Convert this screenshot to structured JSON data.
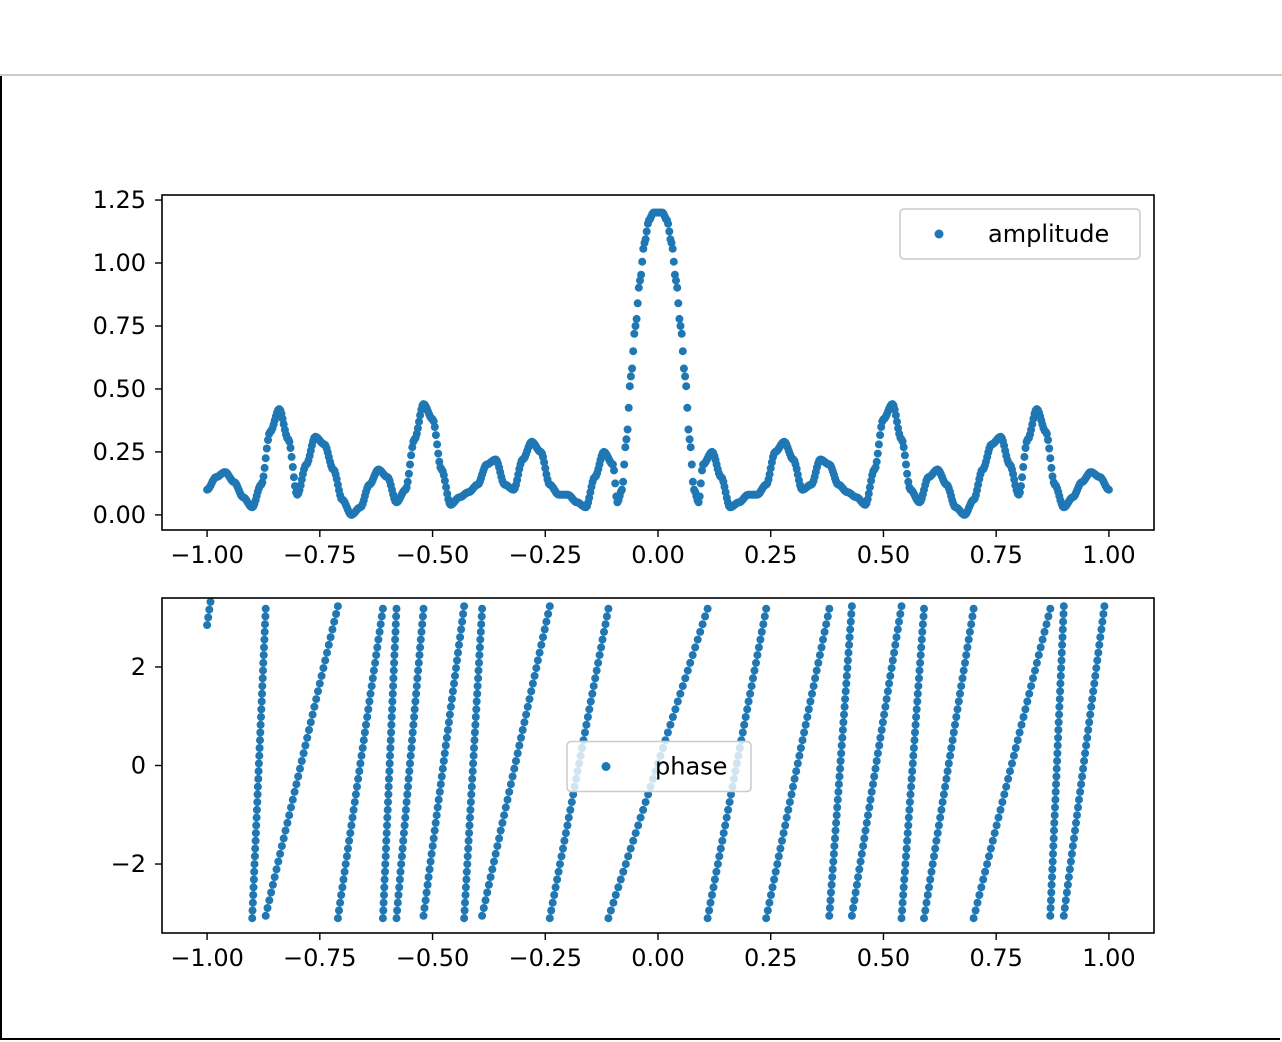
{
  "colors": {
    "series": "#1f77b4",
    "axes": "#000000",
    "legend_border": "#cccccc"
  },
  "chart_data": [
    {
      "type": "scatter",
      "title": "",
      "xlabel": "",
      "ylabel": "",
      "xlim": [
        -1.1,
        1.1
      ],
      "ylim": [
        -0.06,
        1.27
      ],
      "xticks": [
        -1.0,
        -0.75,
        -0.5,
        -0.25,
        0.0,
        0.25,
        0.5,
        0.75,
        1.0
      ],
      "xtick_labels": [
        "−1.00",
        "−0.75",
        "−0.50",
        "−0.25",
        "0.00",
        "0.25",
        "0.50",
        "0.75",
        "1.00"
      ],
      "yticks": [
        0.0,
        0.25,
        0.5,
        0.75,
        1.0,
        1.25
      ],
      "ytick_labels": [
        "0.00",
        "0.25",
        "0.50",
        "0.75",
        "1.00",
        "1.25"
      ],
      "legend": {
        "labels": [
          "amplitude"
        ],
        "position": "upper right"
      },
      "grid": false,
      "series": [
        {
          "name": "amplitude",
          "x": [
            -1.0,
            -0.98,
            -0.96,
            -0.94,
            -0.92,
            -0.9,
            -0.88,
            -0.86,
            -0.84,
            -0.82,
            -0.8,
            -0.78,
            -0.76,
            -0.74,
            -0.72,
            -0.7,
            -0.68,
            -0.66,
            -0.64,
            -0.62,
            -0.6,
            -0.58,
            -0.56,
            -0.54,
            -0.52,
            -0.5,
            -0.48,
            -0.46,
            -0.44,
            -0.42,
            -0.4,
            -0.38,
            -0.36,
            -0.34,
            -0.32,
            -0.3,
            -0.28,
            -0.26,
            -0.24,
            -0.22,
            -0.2,
            -0.18,
            -0.16,
            -0.14,
            -0.12,
            -0.1,
            -0.09,
            -0.08,
            -0.07,
            -0.06,
            -0.05,
            -0.04,
            -0.03,
            -0.02,
            -0.01,
            0.0,
            0.01,
            0.02,
            0.03,
            0.04,
            0.05,
            0.06,
            0.07,
            0.08,
            0.09,
            0.1,
            0.12,
            0.14,
            0.16,
            0.18,
            0.2,
            0.22,
            0.24,
            0.26,
            0.28,
            0.3,
            0.32,
            0.34,
            0.36,
            0.38,
            0.4,
            0.42,
            0.44,
            0.46,
            0.48,
            0.5,
            0.52,
            0.54,
            0.56,
            0.58,
            0.6,
            0.62,
            0.64,
            0.66,
            0.68,
            0.7,
            0.72,
            0.74,
            0.76,
            0.78,
            0.8,
            0.82,
            0.84,
            0.86,
            0.88,
            0.9,
            0.92,
            0.94,
            0.96,
            0.98,
            1.0
          ],
          "y": [
            0.1,
            0.15,
            0.17,
            0.13,
            0.07,
            0.03,
            0.12,
            0.33,
            0.42,
            0.3,
            0.08,
            0.2,
            0.31,
            0.28,
            0.18,
            0.06,
            0.0,
            0.03,
            0.12,
            0.18,
            0.15,
            0.05,
            0.1,
            0.3,
            0.44,
            0.38,
            0.18,
            0.04,
            0.07,
            0.09,
            0.12,
            0.2,
            0.22,
            0.12,
            0.1,
            0.22,
            0.29,
            0.25,
            0.12,
            0.08,
            0.08,
            0.05,
            0.03,
            0.15,
            0.25,
            0.2,
            0.05,
            0.1,
            0.3,
            0.55,
            0.75,
            0.93,
            1.08,
            1.17,
            1.2,
            1.2,
            1.2,
            1.17,
            1.08,
            0.93,
            0.75,
            0.55,
            0.3,
            0.1,
            0.05,
            0.2,
            0.25,
            0.15,
            0.03,
            0.05,
            0.08,
            0.08,
            0.12,
            0.25,
            0.29,
            0.22,
            0.1,
            0.12,
            0.22,
            0.2,
            0.12,
            0.09,
            0.07,
            0.04,
            0.18,
            0.38,
            0.44,
            0.3,
            0.1,
            0.05,
            0.15,
            0.18,
            0.12,
            0.03,
            0.0,
            0.06,
            0.18,
            0.28,
            0.31,
            0.2,
            0.08,
            0.3,
            0.42,
            0.33,
            0.12,
            0.03,
            0.07,
            0.13,
            0.17,
            0.15,
            0.1
          ]
        }
      ]
    },
    {
      "type": "scatter",
      "title": "",
      "xlabel": "",
      "ylabel": "",
      "xlim": [
        -1.1,
        1.1
      ],
      "ylim": [
        -3.4,
        3.4
      ],
      "xticks": [
        -1.0,
        -0.75,
        -0.5,
        -0.25,
        0.0,
        0.25,
        0.5,
        0.75,
        1.0
      ],
      "xtick_labels": [
        "−1.00",
        "−0.75",
        "−0.50",
        "−0.25",
        "0.00",
        "0.25",
        "0.50",
        "0.75",
        "1.00"
      ],
      "yticks": [
        -2,
        0,
        2
      ],
      "ytick_labels": [
        "−2",
        "0",
        "2"
      ],
      "legend": {
        "labels": [
          "phase"
        ],
        "position": "center"
      },
      "grid": false,
      "series": [
        {
          "name": "phase",
          "wrap_period": 6.283,
          "x": [
            -1.0,
            -0.9,
            -0.87,
            -0.71,
            -0.61,
            -0.58,
            -0.52,
            -0.43,
            -0.39,
            -0.24,
            -0.11,
            0.11,
            0.24,
            0.38,
            0.43,
            0.54,
            0.59,
            0.7,
            0.87,
            0.9,
            0.99
          ],
          "y": [
            2.85,
            -3.1,
            -3.05,
            -3.1,
            -3.1,
            -3.1,
            -3.05,
            -3.1,
            -3.05,
            -3.1,
            -3.1,
            -3.1,
            -3.1,
            -3.05,
            -3.05,
            -3.1,
            -3.1,
            -3.1,
            -3.05,
            -3.05,
            -3.1
          ]
        }
      ]
    }
  ]
}
